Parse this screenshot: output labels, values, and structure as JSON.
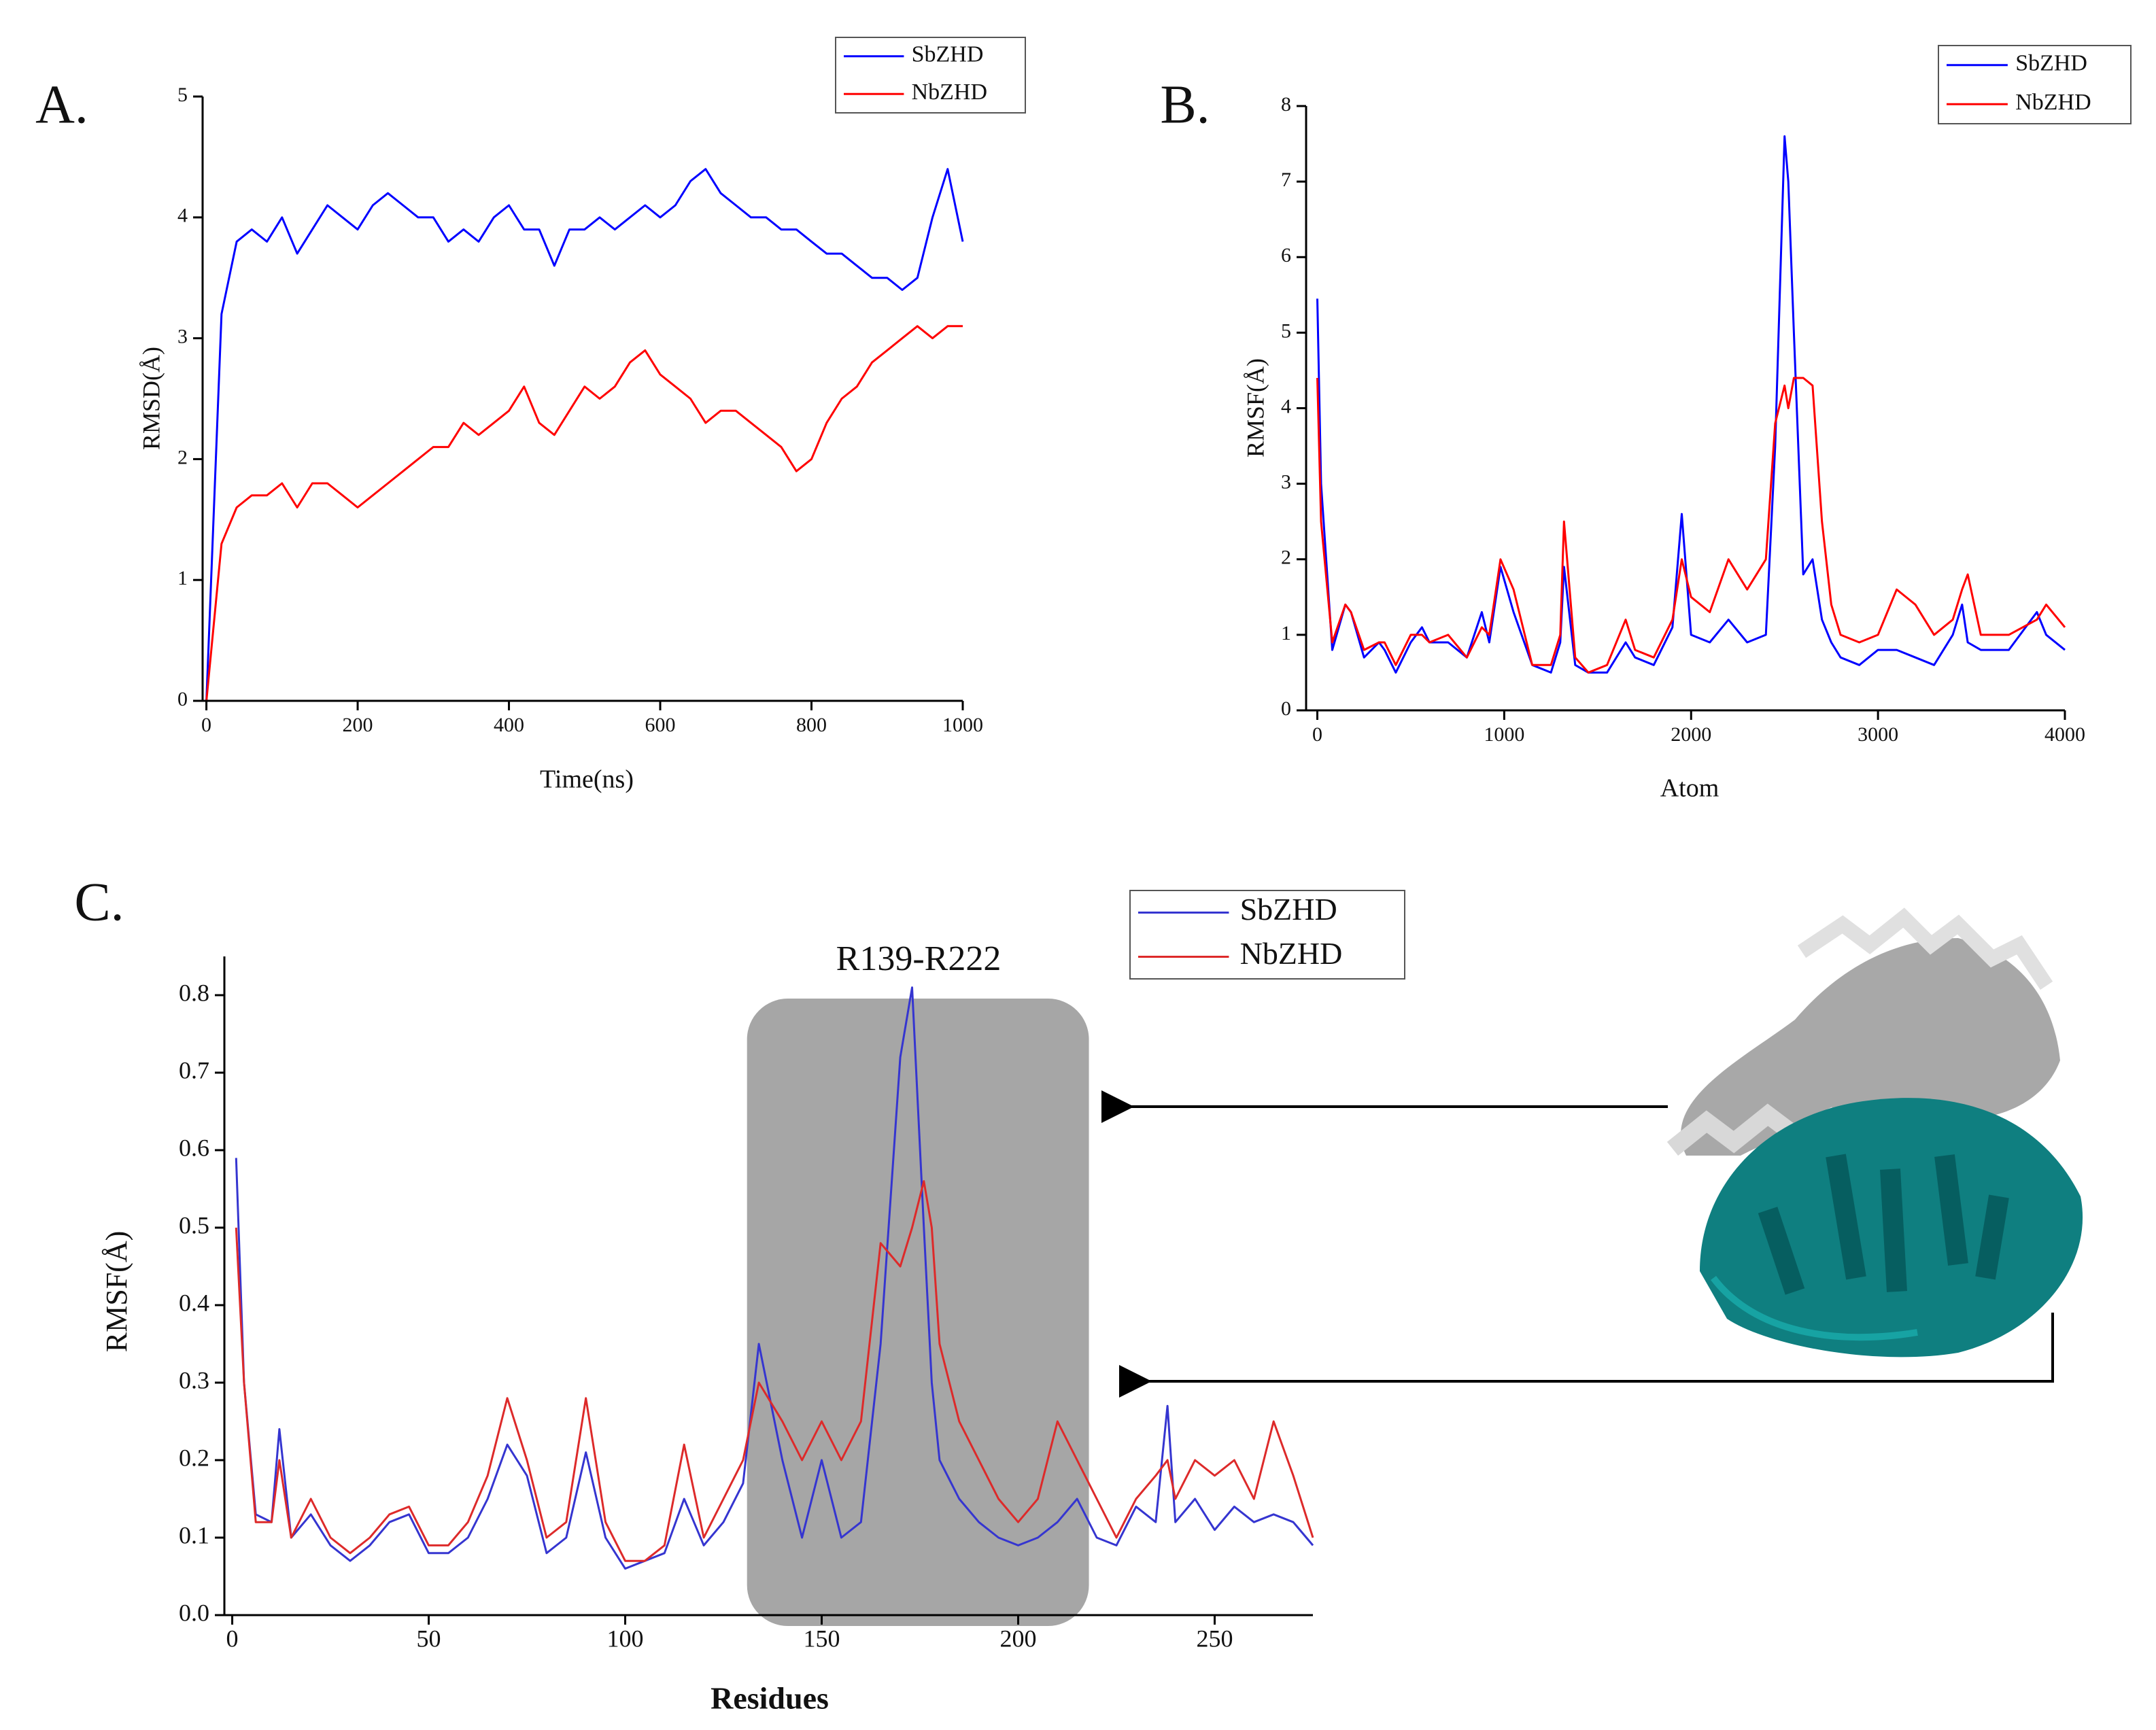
{
  "chart_data": [
    {
      "type": "line",
      "panel_label": "A.",
      "xlabel": "Time(ns)",
      "ylabel": "RMSD(Å)",
      "x": [
        0,
        20,
        40,
        60,
        80,
        100,
        120,
        140,
        160,
        180,
        200,
        220,
        240,
        260,
        280,
        300,
        320,
        340,
        360,
        380,
        400,
        420,
        440,
        460,
        480,
        500,
        520,
        540,
        560,
        580,
        600,
        620,
        640,
        660,
        680,
        700,
        720,
        740,
        760,
        780,
        800,
        820,
        840,
        860,
        880,
        900,
        920,
        940,
        960,
        980,
        1000
      ],
      "series": [
        {
          "name": "SbZHD",
          "color": "#0000ff",
          "values": [
            0,
            3.2,
            3.8,
            3.9,
            3.8,
            4.0,
            3.7,
            3.9,
            4.1,
            4.0,
            3.9,
            4.1,
            4.2,
            4.1,
            4.0,
            4.0,
            3.8,
            3.9,
            3.8,
            4.0,
            4.1,
            3.9,
            3.9,
            3.6,
            3.9,
            3.9,
            4.0,
            3.9,
            4.0,
            4.1,
            4.0,
            4.1,
            4.3,
            4.4,
            4.2,
            4.1,
            4.0,
            4.0,
            3.9,
            3.9,
            3.8,
            3.7,
            3.7,
            3.6,
            3.5,
            3.5,
            3.4,
            3.5,
            4.0,
            4.4,
            3.8
          ]
        },
        {
          "name": "NbZHD",
          "color": "#ff0000",
          "values": [
            0,
            1.3,
            1.6,
            1.7,
            1.7,
            1.8,
            1.6,
            1.8,
            1.8,
            1.7,
            1.6,
            1.7,
            1.8,
            1.9,
            2.0,
            2.1,
            2.1,
            2.3,
            2.2,
            2.3,
            2.4,
            2.6,
            2.3,
            2.2,
            2.4,
            2.6,
            2.5,
            2.6,
            2.8,
            2.9,
            2.7,
            2.6,
            2.5,
            2.3,
            2.4,
            2.4,
            2.3,
            2.2,
            2.1,
            1.9,
            2.0,
            2.3,
            2.5,
            2.6,
            2.8,
            2.9,
            3.0,
            3.1,
            3.0,
            3.1,
            3.1
          ]
        }
      ],
      "xlim": [
        -5,
        1000
      ],
      "xticks": [
        0,
        200,
        400,
        600,
        800,
        1000
      ],
      "ylim": [
        0,
        5
      ],
      "yticks": [
        0,
        1,
        2,
        3,
        4,
        5
      ]
    },
    {
      "type": "line",
      "panel_label": "B.",
      "xlabel": "Atom",
      "ylabel": "RMSF(Å)",
      "x": [
        0,
        20,
        80,
        150,
        180,
        250,
        330,
        360,
        420,
        500,
        560,
        600,
        700,
        800,
        880,
        920,
        980,
        1050,
        1150,
        1250,
        1300,
        1320,
        1380,
        1450,
        1550,
        1650,
        1700,
        1800,
        1900,
        1950,
        2000,
        2100,
        2200,
        2300,
        2400,
        2450,
        2500,
        2520,
        2550,
        2600,
        2650,
        2700,
        2750,
        2800,
        2900,
        3000,
        3100,
        3200,
        3300,
        3400,
        3450,
        3480,
        3550,
        3700,
        3850,
        3900,
        4000
      ],
      "series": [
        {
          "name": "SbZHD",
          "color": "#0000ff",
          "values": [
            5.45,
            3.0,
            0.8,
            1.4,
            1.3,
            0.7,
            0.9,
            0.8,
            0.5,
            0.9,
            1.1,
            0.9,
            0.9,
            0.7,
            1.3,
            0.9,
            1.9,
            1.3,
            0.6,
            0.5,
            0.9,
            1.9,
            0.6,
            0.5,
            0.5,
            0.9,
            0.7,
            0.6,
            1.1,
            2.6,
            1.0,
            0.9,
            1.2,
            0.9,
            1.0,
            3.5,
            7.6,
            7.0,
            5.0,
            1.8,
            2.0,
            1.2,
            0.9,
            0.7,
            0.6,
            0.8,
            0.8,
            0.7,
            0.6,
            1.0,
            1.4,
            0.9,
            0.8,
            0.8,
            1.3,
            1.0,
            0.8
          ]
        },
        {
          "name": "NbZHD",
          "color": "#ff0000",
          "values": [
            4.4,
            2.5,
            0.9,
            1.4,
            1.3,
            0.8,
            0.9,
            0.9,
            0.6,
            1.0,
            1.0,
            0.9,
            1.0,
            0.7,
            1.1,
            1.0,
            2.0,
            1.6,
            0.6,
            0.6,
            1.0,
            2.5,
            0.7,
            0.5,
            0.6,
            1.2,
            0.8,
            0.7,
            1.2,
            2.0,
            1.5,
            1.3,
            2.0,
            1.6,
            2.0,
            3.8,
            4.3,
            4.0,
            4.4,
            4.4,
            4.3,
            2.5,
            1.4,
            1.0,
            0.9,
            1.0,
            1.6,
            1.4,
            1.0,
            1.2,
            1.6,
            1.8,
            1.0,
            1.0,
            1.2,
            1.4,
            1.1
          ]
        }
      ],
      "xlim": [
        -60,
        4000
      ],
      "xticks": [
        0,
        1000,
        2000,
        3000,
        4000
      ],
      "ylim": [
        0,
        8
      ],
      "yticks": [
        0,
        1,
        2,
        3,
        4,
        5,
        6,
        7,
        8
      ]
    },
    {
      "type": "line",
      "panel_label": "C.",
      "xlabel": "Residues",
      "ylabel": "RMSF(Å)",
      "annotation": "R139-R222",
      "shaded_range": [
        131,
        218
      ],
      "x": [
        1,
        3,
        6,
        10,
        12,
        15,
        20,
        25,
        30,
        35,
        40,
        45,
        50,
        55,
        60,
        65,
        70,
        75,
        80,
        85,
        90,
        95,
        100,
        105,
        110,
        115,
        120,
        125,
        130,
        134,
        140,
        145,
        150,
        155,
        160,
        165,
        170,
        173,
        176,
        178,
        180,
        185,
        190,
        195,
        200,
        205,
        210,
        215,
        220,
        225,
        230,
        235,
        238,
        240,
        245,
        250,
        255,
        260,
        265,
        270,
        275
      ],
      "series": [
        {
          "name": "SbZHD",
          "color": "#3535d0",
          "values": [
            0.59,
            0.3,
            0.13,
            0.12,
            0.24,
            0.1,
            0.13,
            0.09,
            0.07,
            0.09,
            0.12,
            0.13,
            0.08,
            0.08,
            0.1,
            0.15,
            0.22,
            0.18,
            0.08,
            0.1,
            0.21,
            0.1,
            0.06,
            0.07,
            0.08,
            0.15,
            0.09,
            0.12,
            0.17,
            0.35,
            0.2,
            0.1,
            0.2,
            0.1,
            0.12,
            0.35,
            0.72,
            0.81,
            0.5,
            0.3,
            0.2,
            0.15,
            0.12,
            0.1,
            0.09,
            0.1,
            0.12,
            0.15,
            0.1,
            0.09,
            0.14,
            0.12,
            0.27,
            0.12,
            0.15,
            0.11,
            0.14,
            0.12,
            0.13,
            0.12,
            0.09
          ]
        },
        {
          "name": "NbZHD",
          "color": "#dd2a2a",
          "values": [
            0.5,
            0.3,
            0.12,
            0.12,
            0.2,
            0.1,
            0.15,
            0.1,
            0.08,
            0.1,
            0.13,
            0.14,
            0.09,
            0.09,
            0.12,
            0.18,
            0.28,
            0.2,
            0.1,
            0.12,
            0.28,
            0.12,
            0.07,
            0.07,
            0.09,
            0.22,
            0.1,
            0.15,
            0.2,
            0.3,
            0.25,
            0.2,
            0.25,
            0.2,
            0.25,
            0.48,
            0.45,
            0.5,
            0.56,
            0.5,
            0.35,
            0.25,
            0.2,
            0.15,
            0.12,
            0.15,
            0.25,
            0.2,
            0.15,
            0.1,
            0.15,
            0.18,
            0.2,
            0.15,
            0.2,
            0.18,
            0.2,
            0.15,
            0.25,
            0.18,
            0.1
          ]
        }
      ],
      "xlim": [
        -2,
        275
      ],
      "xticks": [
        0,
        50,
        100,
        150,
        200,
        250
      ],
      "ylim": [
        0,
        0.85
      ],
      "yticks": [
        {
          "value": 0,
          "label": "0.0"
        },
        0.1,
        0.2,
        0.3,
        0.4,
        0.5,
        0.6,
        0.7,
        0.8
      ]
    }
  ]
}
